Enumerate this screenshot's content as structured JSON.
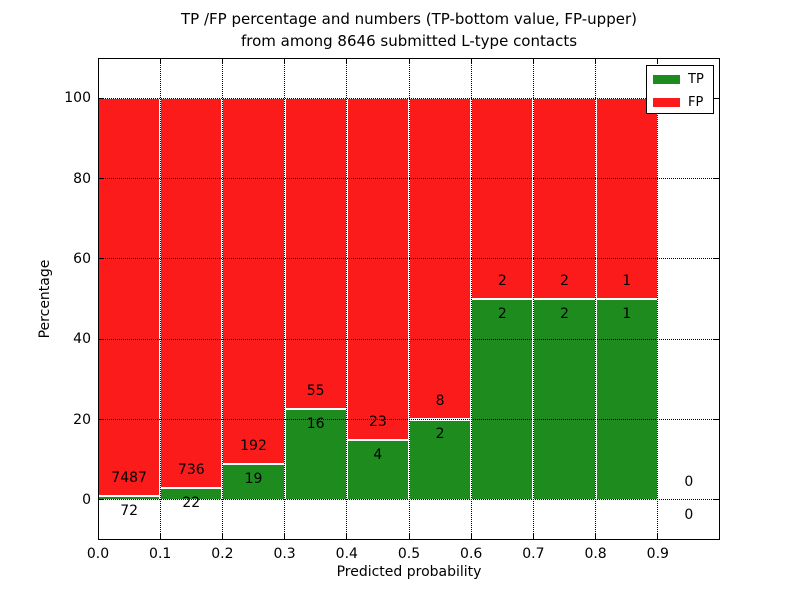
{
  "figure": {
    "title_line1": "TP /FP percentage and numbers (TP-bottom value, FP-upper)",
    "title_line2": "from among 8646 submitted L-type contacts",
    "xlabel": "Predicted probability",
    "ylabel": "Percentage"
  },
  "legend": {
    "position": "upper right",
    "items": [
      {
        "label": "TP",
        "color": "#1e8b1e"
      },
      {
        "label": "FP",
        "color": "#fb1b1b"
      }
    ]
  },
  "chart_data": {
    "type": "bar",
    "stacked": true,
    "normalized": "each 0.1-wide probability bin scaled so TP% + FP% = 100",
    "title": "TP /FP percentage and numbers (TP-bottom value, FP-upper) from among 8646 submitted L-type contacts",
    "xlabel": "Predicted probability",
    "ylabel": "Percentage",
    "total_contacts": 8646,
    "grid": "dotted black, on",
    "legend_position": "upper right",
    "xlim": [
      0.0,
      1.0
    ],
    "ylim": [
      -10,
      110
    ],
    "bin_width": 0.1,
    "x_tick_labels": [
      "0.0",
      "0.1",
      "0.2",
      "0.3",
      "0.4",
      "0.5",
      "0.6",
      "0.7",
      "0.8",
      "0.9"
    ],
    "y_tick_values": [
      0,
      20,
      40,
      60,
      80,
      100
    ],
    "y_tick_labels": [
      "0",
      "20",
      "40",
      "60",
      "80",
      "100"
    ],
    "series": [
      {
        "name": "TP",
        "color": "#1e8b1e",
        "counts": [
          72,
          22,
          19,
          16,
          4,
          2,
          2,
          2,
          1,
          0
        ]
      },
      {
        "name": "FP",
        "color": "#fb1b1b",
        "counts": [
          7487,
          736,
          192,
          55,
          23,
          8,
          2,
          2,
          1,
          0
        ]
      }
    ],
    "bins": [
      {
        "x_start": 0.0,
        "tp": 72,
        "fp": 7487,
        "tp_pct": 0.95,
        "fp_pct": 99.05
      },
      {
        "x_start": 0.1,
        "tp": 22,
        "fp": 736,
        "tp_pct": 2.9,
        "fp_pct": 97.1
      },
      {
        "x_start": 0.2,
        "tp": 19,
        "fp": 192,
        "tp_pct": 9.0,
        "fp_pct": 91.0
      },
      {
        "x_start": 0.3,
        "tp": 16,
        "fp": 55,
        "tp_pct": 22.54,
        "fp_pct": 77.46
      },
      {
        "x_start": 0.4,
        "tp": 4,
        "fp": 23,
        "tp_pct": 14.81,
        "fp_pct": 85.19
      },
      {
        "x_start": 0.5,
        "tp": 2,
        "fp": 8,
        "tp_pct": 20.0,
        "fp_pct": 80.0
      },
      {
        "x_start": 0.6,
        "tp": 2,
        "fp": 2,
        "tp_pct": 50.0,
        "fp_pct": 50.0
      },
      {
        "x_start": 0.7,
        "tp": 2,
        "fp": 2,
        "tp_pct": 50.0,
        "fp_pct": 50.0
      },
      {
        "x_start": 0.8,
        "tp": 1,
        "fp": 1,
        "tp_pct": 50.0,
        "fp_pct": 50.0
      },
      {
        "x_start": 0.9,
        "tp": 0,
        "fp": 0,
        "tp_pct": 0.0,
        "fp_pct": 0.0
      }
    ]
  }
}
